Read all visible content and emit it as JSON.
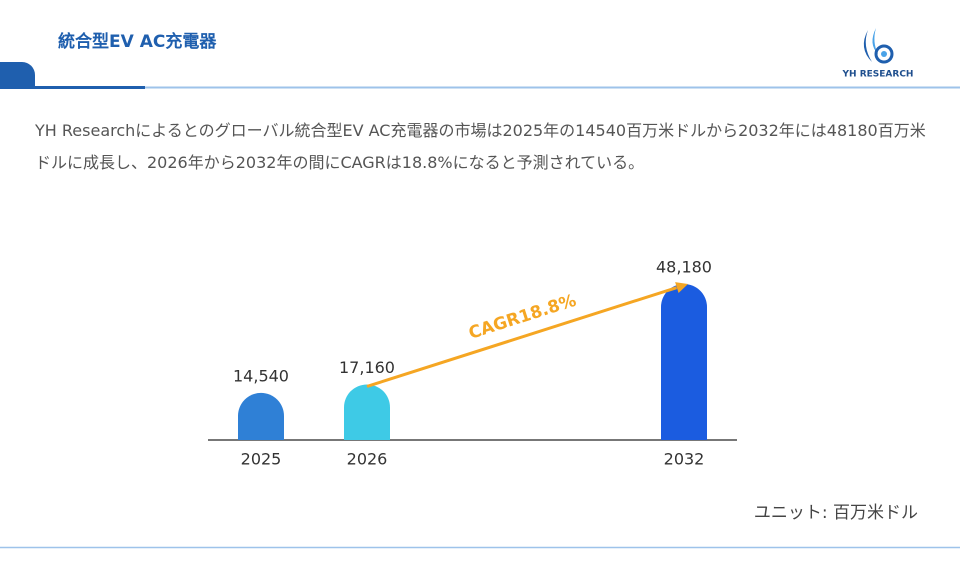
{
  "header": {
    "title": "統合型EV AC充電器",
    "logo": "YH RESEARCH"
  },
  "summary": "YH Researchによるとのグローバル統合型EV AC充電器の市場は2025年の14540百万米ドルから2032年には48180百万米ドルに成長し、2026年から2032年の間にCAGRは18.8%になると予測されている。",
  "chart_data": {
    "type": "bar",
    "categories": [
      "2025",
      "2026",
      "2032"
    ],
    "values": [
      14540,
      17160,
      48180
    ],
    "value_labels": [
      "14,540",
      "17,160",
      "48,180"
    ],
    "colors": [
      "#2f80d6",
      "#3ecae6",
      "#1b5ce0"
    ],
    "annotation": "CAGR18.8%",
    "annotation_color": "#f5a623",
    "unit": "ユニット: 百万米ドル"
  }
}
